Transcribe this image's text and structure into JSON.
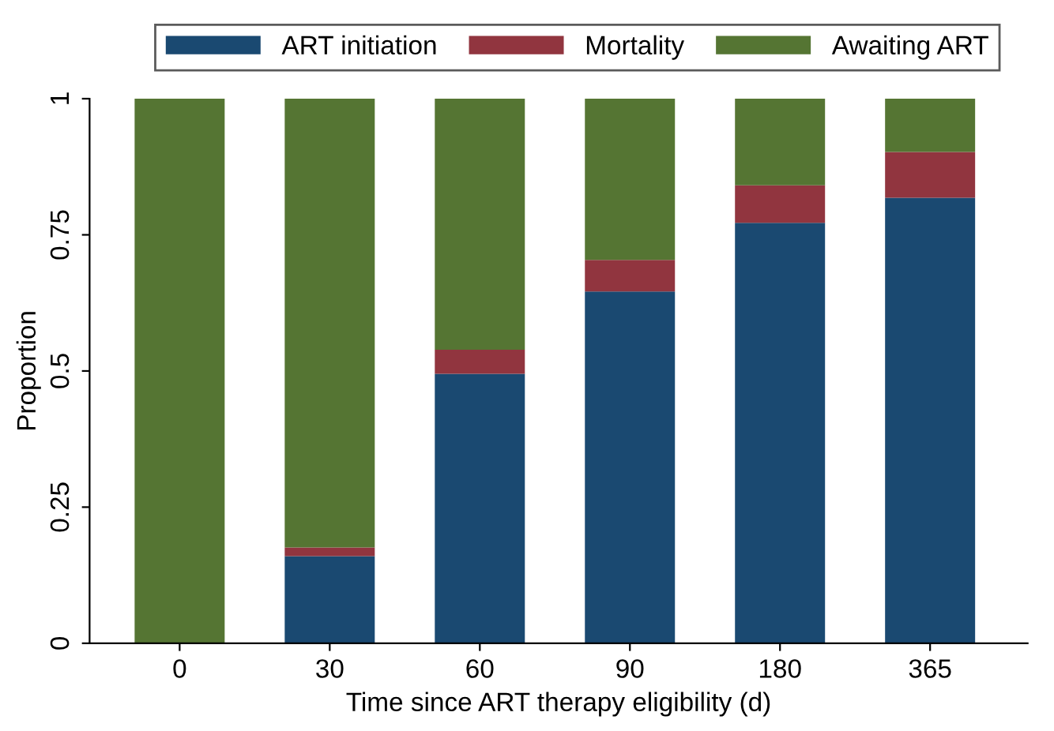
{
  "chart_data": {
    "type": "bar",
    "stacked": true,
    "xlabel": "Time since ART therapy eligibility (d)",
    "ylabel": "Proportion",
    "categories": [
      "0",
      "30",
      "60",
      "90",
      "180",
      "365"
    ],
    "series": [
      {
        "name": "ART initiation",
        "color": "#1a4971",
        "values": [
          0,
          0.16,
          0.495,
          0.646,
          0.772,
          0.818
        ]
      },
      {
        "name": "Mortality",
        "color": "#91353f",
        "values": [
          0,
          0.016,
          0.044,
          0.058,
          0.069,
          0.084
        ]
      },
      {
        "name": "Awaiting ART",
        "color": "#557533",
        "values": [
          1,
          0.824,
          0.461,
          0.296,
          0.159,
          0.098
        ]
      }
    ],
    "ylim": [
      0,
      1
    ],
    "yticks": [
      0,
      0.25,
      0.5,
      0.75,
      1
    ],
    "grid": false,
    "legend": "top"
  }
}
